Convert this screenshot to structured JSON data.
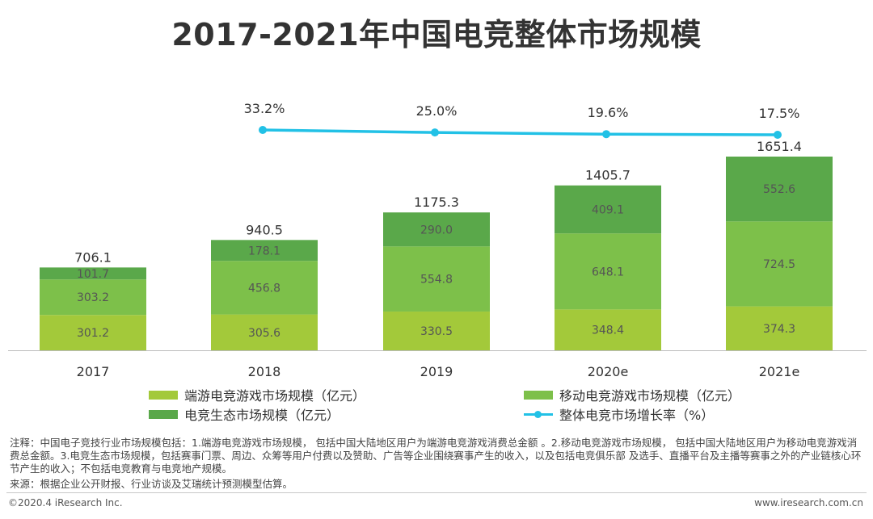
{
  "colors": {
    "pc": "#a3c93a",
    "mobile": "#7dc04a",
    "eco": "#5aa84a",
    "line": "#22c1e6",
    "axis": "#bbbbbb"
  },
  "chart_data": {
    "type": "bar",
    "title": "2017-2021年中国电竞整体市场规模",
    "categories": [
      "2017",
      "2018",
      "2019",
      "2020e",
      "2021e"
    ],
    "series": [
      {
        "name": "端游电竞游戏市场规模（亿元）",
        "values": [
          301.2,
          305.6,
          330.5,
          348.4,
          374.3
        ]
      },
      {
        "name": "移动电竞游戏市场规模（亿元）",
        "values": [
          303.2,
          456.8,
          554.8,
          648.1,
          724.5
        ]
      },
      {
        "name": "电竞生态市场规模（亿元）",
        "values": [
          101.7,
          178.1,
          290.0,
          409.1,
          552.6
        ]
      }
    ],
    "totals": [
      "706.1",
      "940.5",
      "1175.3",
      "1405.7",
      "1651.4"
    ],
    "value_labels": [
      [
        "301.2",
        "305.6",
        "330.5",
        "348.4",
        "374.3"
      ],
      [
        "303.2",
        "456.8",
        "554.8",
        "648.1",
        "724.5"
      ],
      [
        "101.7",
        "178.1",
        "290.0",
        "409.1",
        "552.6"
      ]
    ],
    "growth_series": {
      "name": "整体电竞市场增长率（%）",
      "categories": [
        "2018",
        "2019",
        "2020e",
        "2021e"
      ],
      "values": [
        33.2,
        25.0,
        19.6,
        17.5
      ],
      "labels": [
        "33.2%",
        "25.0%",
        "19.6%",
        "17.5%"
      ]
    },
    "ylim": [
      0,
      1651.4
    ],
    "legend_position": "bottom"
  },
  "notes": {
    "annotation": "注释：中国电子竞技行业市场规模包括：1.端游电竞游戏市场规模， 包括中国大陆地区用户为端游电竞游戏消费总金额 。2.移动电竞游戏市场规模， 包括中国大陆地区用户为移动电竞游戏消费总金额。3.电竞生态市场规模，包括赛事门票、周边、众筹等用户付费以及赞助、广告等企业围绕赛事产生的收入，以及包括电竞俱乐部 及选手、直播平台及主播等赛事之外的产业链核心环节产生的收入；不包括电竞教育与电竞地产规模。",
    "source": "来源：根据企业公开财报、行业访谈及艾瑞统计预测模型估算。"
  },
  "footer": {
    "copyright": "©2020.4 iResearch Inc.",
    "website": "www.iresearch.com.cn"
  }
}
